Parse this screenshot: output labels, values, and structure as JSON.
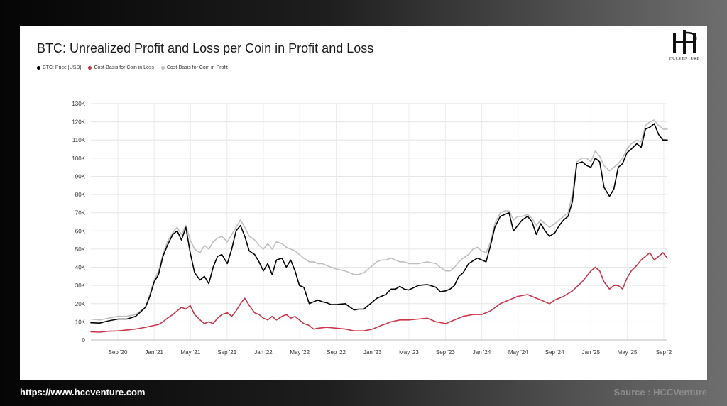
{
  "header": {
    "title": "BTC: Unrealized Profit and Loss per Coin in Profit and Loss",
    "logo_text": "HCCVENTURE"
  },
  "legend": {
    "items": [
      {
        "label": "BTC: Price [USD]",
        "color": "#000000"
      },
      {
        "label": "Cost-Basis for Coin in Loss",
        "color": "#c9374a"
      },
      {
        "label": "Cost-Basis for Coin in Profit",
        "color": "#bfbfbf"
      }
    ]
  },
  "footer": {
    "url": "https://www.hccventure.com",
    "source": "Source : HCCVenture"
  },
  "chart_data": {
    "type": "line",
    "title": "BTC: Unrealized Profit and Loss per Coin in Profit and Loss",
    "xlabel": "",
    "ylabel": "",
    "ylim": [
      0,
      130000
    ],
    "y_ticks": [
      0,
      10000,
      20000,
      30000,
      40000,
      50000,
      60000,
      70000,
      80000,
      90000,
      100000,
      110000,
      120000,
      130000
    ],
    "y_tick_labels": [
      "0",
      "10K",
      "20K",
      "30K",
      "40K",
      "50K",
      "60K",
      "70K",
      "80K",
      "90K",
      "100K",
      "110K",
      "120K",
      "130K"
    ],
    "x_tick_labels": [
      "Sep '20",
      "Jan '21",
      "May '21",
      "Sep '21",
      "Jan '22",
      "May '22",
      "Sep '22",
      "Jan '23",
      "May '23",
      "Sep '23",
      "Jan '24",
      "May '24",
      "Sep '24",
      "Jan '25",
      "May '25",
      "Sep '2"
    ],
    "x_tick_positions": [
      2020.667,
      2021.0,
      2021.333,
      2021.667,
      2022.0,
      2022.333,
      2022.667,
      2023.0,
      2023.333,
      2023.667,
      2024.0,
      2024.333,
      2024.667,
      2025.0,
      2025.333,
      2025.667
    ],
    "xlim": [
      2020.42,
      2025.7
    ],
    "grid": true,
    "legend_position": "top-left",
    "series": [
      {
        "name": "BTC: Price [USD]",
        "color": "#000000",
        "x": [
          2020.42,
          2020.5,
          2020.58,
          2020.67,
          2020.75,
          2020.83,
          2020.92,
          2020.96,
          2021.0,
          2021.04,
          2021.08,
          2021.12,
          2021.17,
          2021.21,
          2021.25,
          2021.29,
          2021.33,
          2021.37,
          2021.42,
          2021.46,
          2021.5,
          2021.54,
          2021.58,
          2021.62,
          2021.67,
          2021.71,
          2021.75,
          2021.79,
          2021.83,
          2021.87,
          2021.92,
          2021.96,
          2022.0,
          2022.04,
          2022.08,
          2022.12,
          2022.17,
          2022.21,
          2022.25,
          2022.29,
          2022.33,
          2022.37,
          2022.42,
          2022.46,
          2022.5,
          2022.54,
          2022.58,
          2022.62,
          2022.67,
          2022.75,
          2022.83,
          2022.87,
          2022.92,
          2023.0,
          2023.04,
          2023.08,
          2023.12,
          2023.17,
          2023.21,
          2023.25,
          2023.29,
          2023.33,
          2023.42,
          2023.5,
          2023.58,
          2023.62,
          2023.67,
          2023.71,
          2023.75,
          2023.79,
          2023.83,
          2023.88,
          2023.92,
          2023.96,
          2024.0,
          2024.04,
          2024.08,
          2024.12,
          2024.17,
          2024.21,
          2024.25,
          2024.29,
          2024.33,
          2024.37,
          2024.42,
          2024.46,
          2024.5,
          2024.54,
          2024.58,
          2024.62,
          2024.67,
          2024.71,
          2024.75,
          2024.79,
          2024.83,
          2024.87,
          2024.92,
          2024.96,
          2025.0,
          2025.04,
          2025.08,
          2025.12,
          2025.17,
          2025.21,
          2025.25,
          2025.29,
          2025.33,
          2025.37,
          2025.42,
          2025.46,
          2025.5,
          2025.54,
          2025.58,
          2025.62,
          2025.66,
          2025.7
        ],
        "values": [
          9500,
          9300,
          10500,
          11500,
          11500,
          13000,
          18000,
          24000,
          32000,
          36000,
          46000,
          52000,
          58000,
          60000,
          55000,
          62000,
          48000,
          37000,
          33000,
          35000,
          31000,
          40000,
          46000,
          47000,
          42000,
          50000,
          60000,
          63000,
          57000,
          49000,
          47000,
          43000,
          38000,
          42000,
          36000,
          44000,
          45000,
          40000,
          44000,
          38000,
          30000,
          29000,
          20000,
          21000,
          22000,
          21000,
          20500,
          19500,
          19500,
          20000,
          16500,
          17000,
          17000,
          21000,
          23000,
          24000,
          25000,
          28000,
          28000,
          29500,
          28000,
          27500,
          30000,
          30500,
          29000,
          26500,
          27000,
          28000,
          30000,
          35000,
          37000,
          42000,
          43500,
          45000,
          44000,
          43000,
          52000,
          62000,
          68000,
          69000,
          70000,
          60000,
          63000,
          66000,
          68000,
          65000,
          58000,
          64000,
          60000,
          57000,
          59000,
          63000,
          66000,
          68000,
          76000,
          97000,
          98000,
          96000,
          95000,
          100000,
          98000,
          84000,
          79000,
          83000,
          95000,
          97000,
          103000,
          105000,
          108000,
          106000,
          116000,
          117000,
          119000,
          113000,
          110000,
          110000
        ],
        "linewidth": 1.6
      },
      {
        "name": "Cost-Basis for Coin in Loss",
        "color": "#c9374a",
        "x": [
          2020.42,
          2020.5,
          2020.58,
          2020.67,
          2020.75,
          2020.83,
          2020.92,
          2021.0,
          2021.04,
          2021.08,
          2021.12,
          2021.17,
          2021.21,
          2021.25,
          2021.29,
          2021.33,
          2021.37,
          2021.42,
          2021.46,
          2021.5,
          2021.54,
          2021.58,
          2021.62,
          2021.67,
          2021.71,
          2021.75,
          2021.79,
          2021.83,
          2021.87,
          2021.92,
          2021.96,
          2022.0,
          2022.04,
          2022.08,
          2022.12,
          2022.17,
          2022.21,
          2022.25,
          2022.29,
          2022.33,
          2022.37,
          2022.42,
          2022.46,
          2022.5,
          2022.58,
          2022.67,
          2022.75,
          2022.83,
          2022.92,
          2023.0,
          2023.08,
          2023.17,
          2023.25,
          2023.33,
          2023.42,
          2023.5,
          2023.58,
          2023.67,
          2023.75,
          2023.83,
          2023.92,
          2024.0,
          2024.08,
          2024.17,
          2024.25,
          2024.33,
          2024.42,
          2024.5,
          2024.58,
          2024.62,
          2024.67,
          2024.75,
          2024.83,
          2024.92,
          2025.0,
          2025.04,
          2025.08,
          2025.12,
          2025.17,
          2025.21,
          2025.25,
          2025.29,
          2025.33,
          2025.37,
          2025.42,
          2025.46,
          2025.5,
          2025.54,
          2025.58,
          2025.62,
          2025.66,
          2025.7
        ],
        "values": [
          4500,
          4300,
          4800,
          5000,
          5500,
          6000,
          7000,
          8000,
          8500,
          10000,
          12000,
          14000,
          16000,
          18000,
          17000,
          19000,
          14000,
          11000,
          9000,
          10000,
          9000,
          12000,
          14000,
          15000,
          13000,
          16000,
          20000,
          23000,
          19000,
          15000,
          14000,
          12000,
          11000,
          13000,
          11000,
          13000,
          14000,
          12000,
          13000,
          11000,
          9000,
          8000,
          6000,
          6500,
          7000,
          6500,
          6000,
          5000,
          5000,
          6000,
          8000,
          10000,
          11000,
          11000,
          11500,
          12000,
          10000,
          9000,
          11000,
          13000,
          14000,
          14000,
          16000,
          20000,
          22000,
          24000,
          25000,
          23000,
          21000,
          20000,
          22000,
          24000,
          27000,
          32000,
          38000,
          40000,
          38000,
          32000,
          28000,
          30000,
          30000,
          28000,
          34000,
          38000,
          41000,
          44000,
          46000,
          48000,
          44000,
          46000,
          48000,
          45000
        ],
        "linewidth": 1.6
      },
      {
        "name": "Cost-Basis for Coin in Profit",
        "color": "#bfbfbf",
        "x": [
          2020.42,
          2020.5,
          2020.58,
          2020.67,
          2020.75,
          2020.83,
          2020.92,
          2020.96,
          2021.0,
          2021.04,
          2021.08,
          2021.12,
          2021.17,
          2021.21,
          2021.25,
          2021.29,
          2021.33,
          2021.37,
          2021.42,
          2021.46,
          2021.5,
          2021.54,
          2021.58,
          2021.62,
          2021.67,
          2021.71,
          2021.75,
          2021.79,
          2021.83,
          2021.87,
          2021.92,
          2021.96,
          2022.0,
          2022.04,
          2022.08,
          2022.12,
          2022.17,
          2022.21,
          2022.25,
          2022.29,
          2022.33,
          2022.37,
          2022.42,
          2022.46,
          2022.5,
          2022.54,
          2022.58,
          2022.62,
          2022.67,
          2022.75,
          2022.83,
          2022.87,
          2022.92,
          2023.0,
          2023.04,
          2023.08,
          2023.12,
          2023.17,
          2023.21,
          2023.25,
          2023.29,
          2023.33,
          2023.42,
          2023.5,
          2023.58,
          2023.62,
          2023.67,
          2023.71,
          2023.75,
          2023.79,
          2023.83,
          2023.88,
          2023.92,
          2023.96,
          2024.0,
          2024.04,
          2024.08,
          2024.12,
          2024.17,
          2024.21,
          2024.25,
          2024.29,
          2024.33,
          2024.37,
          2024.42,
          2024.46,
          2024.5,
          2024.54,
          2024.58,
          2024.62,
          2024.67,
          2024.71,
          2024.75,
          2024.79,
          2024.83,
          2024.87,
          2024.92,
          2024.96,
          2025.0,
          2025.04,
          2025.08,
          2025.12,
          2025.17,
          2025.21,
          2025.25,
          2025.29,
          2025.33,
          2025.37,
          2025.42,
          2025.46,
          2025.5,
          2025.54,
          2025.58,
          2025.62,
          2025.66,
          2025.7
        ],
        "values": [
          11500,
          11000,
          12000,
          13000,
          13000,
          14000,
          18000,
          25000,
          33000,
          38000,
          47000,
          54000,
          59000,
          62000,
          58000,
          63000,
          55000,
          50000,
          48000,
          52000,
          50000,
          54000,
          56000,
          57000,
          54000,
          58000,
          62000,
          66000,
          62000,
          57000,
          55000,
          52000,
          50000,
          53000,
          50000,
          54000,
          53000,
          51000,
          50000,
          49000,
          47000,
          45000,
          43000,
          43000,
          42000,
          42000,
          41000,
          40000,
          39000,
          38000,
          36000,
          36000,
          37000,
          41000,
          43000,
          44000,
          44000,
          45000,
          44000,
          43000,
          43000,
          42000,
          42000,
          43000,
          42000,
          40000,
          38000,
          38000,
          40000,
          43000,
          45000,
          47000,
          50000,
          51000,
          49000,
          48000,
          54000,
          64000,
          70000,
          71000,
          71000,
          66000,
          68000,
          68000,
          69000,
          67000,
          63000,
          66000,
          64000,
          62000,
          64000,
          66000,
          68000,
          70000,
          80000,
          98000,
          100000,
          100000,
          98000,
          104000,
          101000,
          96000,
          93000,
          95000,
          97000,
          100000,
          105000,
          108000,
          110000,
          109000,
          118000,
          120000,
          121000,
          118000,
          116000,
          116000
        ],
        "linewidth": 1.6
      }
    ]
  }
}
